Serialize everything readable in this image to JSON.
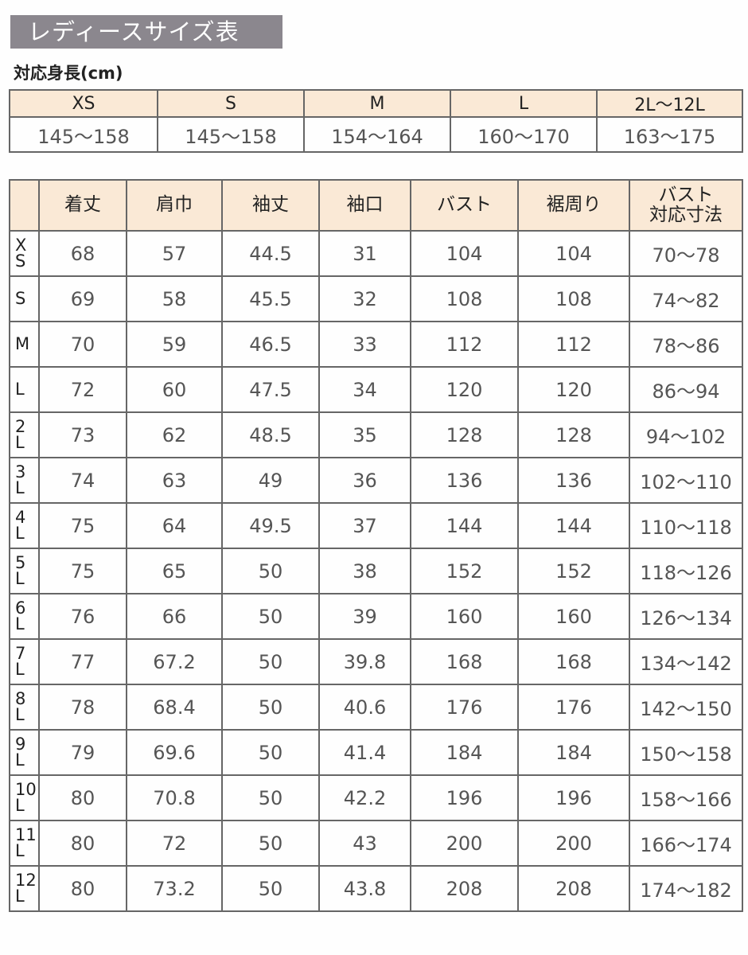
{
  "title": "レディースサイズ表",
  "height_table": {
    "label": "対応身長(cm)",
    "sizes": [
      "XS",
      "S",
      "M",
      "L",
      "2L〜12L"
    ],
    "heights": [
      "145〜158",
      "145〜158",
      "154〜164",
      "160〜170",
      "163〜175"
    ]
  },
  "size_table": {
    "headers": [
      "",
      "着丈",
      "肩巾",
      "袖丈",
      "袖口",
      "バスト",
      "裾周り",
      "バスト\n対応寸法"
    ],
    "rows": [
      {
        "size": [
          "X",
          "S"
        ],
        "values": [
          "68",
          "57",
          "44.5",
          "31",
          "104",
          "104",
          "70〜78"
        ]
      },
      {
        "size": [
          "S"
        ],
        "values": [
          "69",
          "58",
          "45.5",
          "32",
          "108",
          "108",
          "74〜82"
        ]
      },
      {
        "size": [
          "M"
        ],
        "values": [
          "70",
          "59",
          "46.5",
          "33",
          "112",
          "112",
          "78〜86"
        ]
      },
      {
        "size": [
          "L"
        ],
        "values": [
          "72",
          "60",
          "47.5",
          "34",
          "120",
          "120",
          "86〜94"
        ]
      },
      {
        "size": [
          "2",
          "L"
        ],
        "values": [
          "73",
          "62",
          "48.5",
          "35",
          "128",
          "128",
          "94〜102"
        ]
      },
      {
        "size": [
          "3",
          "L"
        ],
        "values": [
          "74",
          "63",
          "49",
          "36",
          "136",
          "136",
          "102〜110"
        ]
      },
      {
        "size": [
          "4",
          "L"
        ],
        "values": [
          "75",
          "64",
          "49.5",
          "37",
          "144",
          "144",
          "110〜118"
        ]
      },
      {
        "size": [
          "5",
          "L"
        ],
        "values": [
          "75",
          "65",
          "50",
          "38",
          "152",
          "152",
          "118〜126"
        ]
      },
      {
        "size": [
          "6",
          "L"
        ],
        "values": [
          "76",
          "66",
          "50",
          "39",
          "160",
          "160",
          "126〜134"
        ]
      },
      {
        "size": [
          "7",
          "L"
        ],
        "values": [
          "77",
          "67.2",
          "50",
          "39.8",
          "168",
          "168",
          "134〜142"
        ]
      },
      {
        "size": [
          "8",
          "L"
        ],
        "values": [
          "78",
          "68.4",
          "50",
          "40.6",
          "176",
          "176",
          "142〜150"
        ]
      },
      {
        "size": [
          "9",
          "L"
        ],
        "values": [
          "79",
          "69.6",
          "50",
          "41.4",
          "184",
          "184",
          "150〜158"
        ]
      },
      {
        "size": [
          "10",
          "L"
        ],
        "values": [
          "80",
          "70.8",
          "50",
          "42.2",
          "196",
          "196",
          "158〜166"
        ]
      },
      {
        "size": [
          "11",
          "L"
        ],
        "values": [
          "80",
          "72",
          "50",
          "43",
          "200",
          "200",
          "166〜174"
        ]
      },
      {
        "size": [
          "12",
          "L"
        ],
        "values": [
          "80",
          "73.2",
          "50",
          "43.8",
          "208",
          "208",
          "174〜182"
        ]
      }
    ]
  },
  "colors": {
    "title_bg": "#8b878e",
    "header_bg": "#fae9d6",
    "border": "#666666"
  }
}
